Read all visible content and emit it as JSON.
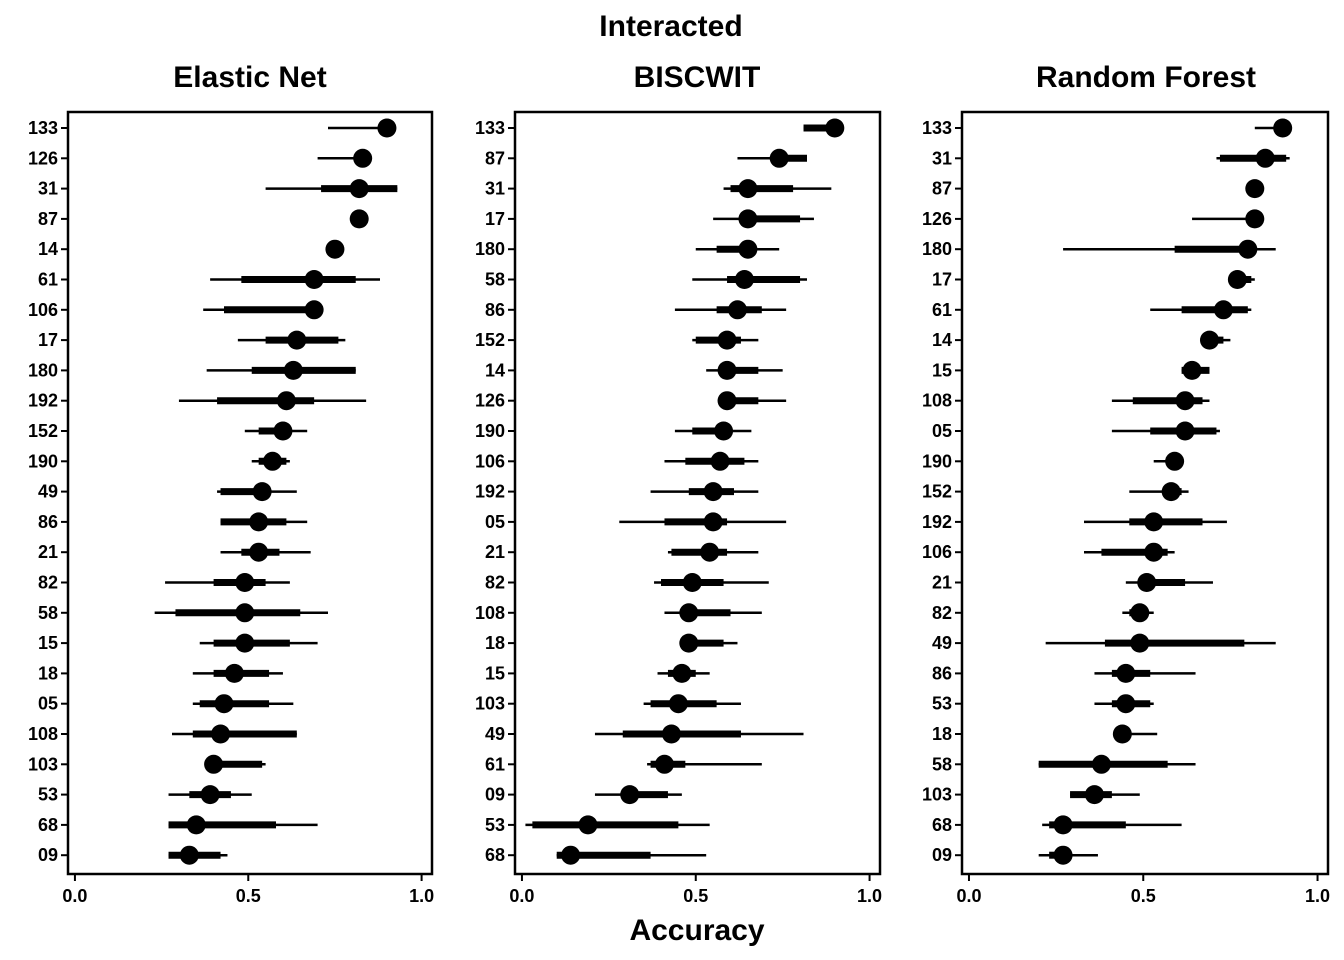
{
  "figure": {
    "title": "Interacted",
    "xlabel": "Accuracy"
  },
  "style": {
    "color": "#000000",
    "background": "#ffffff"
  },
  "chart_data": [
    {
      "type": "scatter",
      "title": "Elastic Net",
      "xlim": [
        -0.02,
        1.03
      ],
      "xticks": [
        0,
        0.5,
        1
      ],
      "xtick_labels": [
        "0.0",
        "0.5",
        "1.0"
      ],
      "grid": false,
      "items": [
        {
          "label": "133",
          "point": 0.9,
          "inner": null,
          "outer": [
            0.73,
            0.9
          ]
        },
        {
          "label": "126",
          "point": 0.83,
          "inner": null,
          "outer": [
            0.7,
            0.83
          ]
        },
        {
          "label": "31",
          "point": 0.82,
          "inner": [
            0.71,
            0.93
          ],
          "outer": [
            0.55,
            0.93
          ]
        },
        {
          "label": "87",
          "point": 0.82,
          "inner": null,
          "outer": null
        },
        {
          "label": "14",
          "point": 0.75,
          "inner": null,
          "outer": null
        },
        {
          "label": "61",
          "point": 0.69,
          "inner": [
            0.48,
            0.81
          ],
          "outer": [
            0.39,
            0.88
          ]
        },
        {
          "label": "106",
          "point": 0.69,
          "inner": [
            0.43,
            0.69
          ],
          "outer": [
            0.37,
            0.69
          ]
        },
        {
          "label": "17",
          "point": 0.64,
          "inner": [
            0.55,
            0.76
          ],
          "outer": [
            0.47,
            0.78
          ]
        },
        {
          "label": "180",
          "point": 0.63,
          "inner": [
            0.51,
            0.81
          ],
          "outer": [
            0.38,
            0.81
          ]
        },
        {
          "label": "192",
          "point": 0.61,
          "inner": [
            0.41,
            0.69
          ],
          "outer": [
            0.3,
            0.84
          ]
        },
        {
          "label": "152",
          "point": 0.6,
          "inner": [
            0.53,
            0.6
          ],
          "outer": [
            0.49,
            0.67
          ]
        },
        {
          "label": "190",
          "point": 0.57,
          "inner": [
            0.53,
            0.61
          ],
          "outer": [
            0.51,
            0.62
          ]
        },
        {
          "label": "49",
          "point": 0.54,
          "inner": [
            0.42,
            0.54
          ],
          "outer": [
            0.41,
            0.64
          ]
        },
        {
          "label": "86",
          "point": 0.53,
          "inner": [
            0.42,
            0.61
          ],
          "outer": [
            0.42,
            0.67
          ]
        },
        {
          "label": "21",
          "point": 0.53,
          "inner": [
            0.48,
            0.59
          ],
          "outer": [
            0.42,
            0.68
          ]
        },
        {
          "label": "82",
          "point": 0.49,
          "inner": [
            0.4,
            0.55
          ],
          "outer": [
            0.26,
            0.62
          ]
        },
        {
          "label": "58",
          "point": 0.49,
          "inner": [
            0.29,
            0.65
          ],
          "outer": [
            0.23,
            0.73
          ]
        },
        {
          "label": "15",
          "point": 0.49,
          "inner": [
            0.4,
            0.62
          ],
          "outer": [
            0.36,
            0.7
          ]
        },
        {
          "label": "18",
          "point": 0.46,
          "inner": [
            0.4,
            0.56
          ],
          "outer": [
            0.34,
            0.6
          ]
        },
        {
          "label": "05",
          "point": 0.43,
          "inner": [
            0.36,
            0.56
          ],
          "outer": [
            0.34,
            0.63
          ]
        },
        {
          "label": "108",
          "point": 0.42,
          "inner": [
            0.34,
            0.64
          ],
          "outer": [
            0.28,
            0.64
          ]
        },
        {
          "label": "103",
          "point": 0.4,
          "inner": [
            0.4,
            0.54
          ],
          "outer": [
            0.4,
            0.55
          ]
        },
        {
          "label": "53",
          "point": 0.39,
          "inner": [
            0.33,
            0.45
          ],
          "outer": [
            0.27,
            0.51
          ]
        },
        {
          "label": "68",
          "point": 0.35,
          "inner": [
            0.27,
            0.58
          ],
          "outer": [
            0.27,
            0.7
          ]
        },
        {
          "label": "09",
          "point": 0.33,
          "inner": [
            0.27,
            0.42
          ],
          "outer": [
            0.27,
            0.44
          ]
        }
      ]
    },
    {
      "type": "scatter",
      "title": "BISCWIT",
      "xlim": [
        -0.02,
        1.03
      ],
      "xticks": [
        0,
        0.5,
        1
      ],
      "xtick_labels": [
        "0.0",
        "0.5",
        "1.0"
      ],
      "grid": false,
      "items": [
        {
          "label": "133",
          "point": 0.9,
          "inner": [
            0.81,
            0.9
          ],
          "outer": [
            0.81,
            0.9
          ]
        },
        {
          "label": "87",
          "point": 0.74,
          "inner": [
            0.74,
            0.82
          ],
          "outer": [
            0.62,
            0.82
          ]
        },
        {
          "label": "31",
          "point": 0.65,
          "inner": [
            0.6,
            0.78
          ],
          "outer": [
            0.58,
            0.89
          ]
        },
        {
          "label": "17",
          "point": 0.65,
          "inner": [
            0.65,
            0.8
          ],
          "outer": [
            0.55,
            0.84
          ]
        },
        {
          "label": "180",
          "point": 0.65,
          "inner": [
            0.56,
            0.65
          ],
          "outer": [
            0.5,
            0.74
          ]
        },
        {
          "label": "58",
          "point": 0.64,
          "inner": [
            0.59,
            0.8
          ],
          "outer": [
            0.49,
            0.82
          ]
        },
        {
          "label": "86",
          "point": 0.62,
          "inner": [
            0.56,
            0.69
          ],
          "outer": [
            0.44,
            0.76
          ]
        },
        {
          "label": "152",
          "point": 0.59,
          "inner": [
            0.5,
            0.63
          ],
          "outer": [
            0.49,
            0.68
          ]
        },
        {
          "label": "14",
          "point": 0.59,
          "inner": [
            0.59,
            0.68
          ],
          "outer": [
            0.53,
            0.75
          ]
        },
        {
          "label": "126",
          "point": 0.59,
          "inner": [
            0.59,
            0.68
          ],
          "outer": [
            0.59,
            0.76
          ]
        },
        {
          "label": "190",
          "point": 0.58,
          "inner": [
            0.49,
            0.58
          ],
          "outer": [
            0.44,
            0.66
          ]
        },
        {
          "label": "106",
          "point": 0.57,
          "inner": [
            0.47,
            0.64
          ],
          "outer": [
            0.41,
            0.68
          ]
        },
        {
          "label": "192",
          "point": 0.55,
          "inner": [
            0.48,
            0.61
          ],
          "outer": [
            0.37,
            0.68
          ]
        },
        {
          "label": "05",
          "point": 0.55,
          "inner": [
            0.41,
            0.59
          ],
          "outer": [
            0.28,
            0.76
          ]
        },
        {
          "label": "21",
          "point": 0.54,
          "inner": [
            0.43,
            0.59
          ],
          "outer": [
            0.42,
            0.68
          ]
        },
        {
          "label": "82",
          "point": 0.49,
          "inner": [
            0.4,
            0.58
          ],
          "outer": [
            0.38,
            0.71
          ]
        },
        {
          "label": "108",
          "point": 0.48,
          "inner": [
            0.48,
            0.6
          ],
          "outer": [
            0.41,
            0.69
          ]
        },
        {
          "label": "18",
          "point": 0.48,
          "inner": [
            0.48,
            0.58
          ],
          "outer": [
            0.48,
            0.62
          ]
        },
        {
          "label": "15",
          "point": 0.46,
          "inner": [
            0.42,
            0.5
          ],
          "outer": [
            0.39,
            0.54
          ]
        },
        {
          "label": "103",
          "point": 0.45,
          "inner": [
            0.37,
            0.56
          ],
          "outer": [
            0.35,
            0.63
          ]
        },
        {
          "label": "49",
          "point": 0.43,
          "inner": [
            0.29,
            0.63
          ],
          "outer": [
            0.21,
            0.81
          ]
        },
        {
          "label": "61",
          "point": 0.41,
          "inner": [
            0.37,
            0.47
          ],
          "outer": [
            0.36,
            0.69
          ]
        },
        {
          "label": "09",
          "point": 0.31,
          "inner": [
            0.31,
            0.42
          ],
          "outer": [
            0.21,
            0.46
          ]
        },
        {
          "label": "53",
          "point": 0.19,
          "inner": [
            0.03,
            0.45
          ],
          "outer": [
            0.01,
            0.54
          ]
        },
        {
          "label": "68",
          "point": 0.14,
          "inner": [
            0.1,
            0.37
          ],
          "outer": [
            0.1,
            0.53
          ]
        }
      ]
    },
    {
      "type": "scatter",
      "title": "Random Forest",
      "xlim": [
        -0.02,
        1.03
      ],
      "xticks": [
        0,
        0.5,
        1
      ],
      "xtick_labels": [
        "0.0",
        "0.5",
        "1.0"
      ],
      "grid": false,
      "items": [
        {
          "label": "133",
          "point": 0.9,
          "inner": null,
          "outer": [
            0.82,
            0.9
          ]
        },
        {
          "label": "31",
          "point": 0.85,
          "inner": [
            0.72,
            0.91
          ],
          "outer": [
            0.71,
            0.92
          ]
        },
        {
          "label": "87",
          "point": 0.82,
          "inner": null,
          "outer": null
        },
        {
          "label": "126",
          "point": 0.82,
          "inner": null,
          "outer": [
            0.64,
            0.82
          ]
        },
        {
          "label": "180",
          "point": 0.8,
          "inner": [
            0.59,
            0.8
          ],
          "outer": [
            0.27,
            0.88
          ]
        },
        {
          "label": "17",
          "point": 0.77,
          "inner": [
            0.77,
            0.81
          ],
          "outer": [
            0.77,
            0.82
          ]
        },
        {
          "label": "61",
          "point": 0.73,
          "inner": [
            0.61,
            0.8
          ],
          "outer": [
            0.52,
            0.81
          ]
        },
        {
          "label": "14",
          "point": 0.69,
          "inner": [
            0.69,
            0.73
          ],
          "outer": [
            0.69,
            0.75
          ]
        },
        {
          "label": "15",
          "point": 0.64,
          "inner": [
            0.61,
            0.69
          ],
          "outer": [
            0.61,
            0.69
          ]
        },
        {
          "label": "108",
          "point": 0.62,
          "inner": [
            0.47,
            0.67
          ],
          "outer": [
            0.41,
            0.69
          ]
        },
        {
          "label": "05",
          "point": 0.62,
          "inner": [
            0.52,
            0.71
          ],
          "outer": [
            0.41,
            0.72
          ]
        },
        {
          "label": "190",
          "point": 0.59,
          "inner": null,
          "outer": [
            0.53,
            0.59
          ]
        },
        {
          "label": "152",
          "point": 0.58,
          "inner": [
            0.58,
            0.61
          ],
          "outer": [
            0.46,
            0.63
          ]
        },
        {
          "label": "192",
          "point": 0.53,
          "inner": [
            0.46,
            0.67
          ],
          "outer": [
            0.33,
            0.74
          ]
        },
        {
          "label": "106",
          "point": 0.53,
          "inner": [
            0.38,
            0.57
          ],
          "outer": [
            0.33,
            0.59
          ]
        },
        {
          "label": "21",
          "point": 0.51,
          "inner": [
            0.51,
            0.62
          ],
          "outer": [
            0.45,
            0.7
          ]
        },
        {
          "label": "82",
          "point": 0.49,
          "inner": [
            0.46,
            0.51
          ],
          "outer": [
            0.44,
            0.53
          ]
        },
        {
          "label": "49",
          "point": 0.49,
          "inner": [
            0.39,
            0.79
          ],
          "outer": [
            0.22,
            0.88
          ]
        },
        {
          "label": "86",
          "point": 0.45,
          "inner": [
            0.41,
            0.52
          ],
          "outer": [
            0.36,
            0.65
          ]
        },
        {
          "label": "53",
          "point": 0.45,
          "inner": [
            0.41,
            0.52
          ],
          "outer": [
            0.36,
            0.53
          ]
        },
        {
          "label": "18",
          "point": 0.44,
          "inner": null,
          "outer": [
            0.44,
            0.54
          ]
        },
        {
          "label": "58",
          "point": 0.38,
          "inner": [
            0.2,
            0.57
          ],
          "outer": [
            0.2,
            0.65
          ]
        },
        {
          "label": "103",
          "point": 0.36,
          "inner": [
            0.29,
            0.41
          ],
          "outer": [
            0.29,
            0.49
          ]
        },
        {
          "label": "68",
          "point": 0.27,
          "inner": [
            0.23,
            0.45
          ],
          "outer": [
            0.21,
            0.61
          ]
        },
        {
          "label": "09",
          "point": 0.27,
          "inner": [
            0.23,
            0.27
          ],
          "outer": [
            0.2,
            0.37
          ]
        }
      ]
    }
  ]
}
